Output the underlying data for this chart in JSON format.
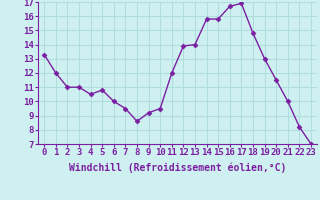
{
  "x": [
    0,
    1,
    2,
    3,
    4,
    5,
    6,
    7,
    8,
    9,
    10,
    11,
    12,
    13,
    14,
    15,
    16,
    17,
    18,
    19,
    20,
    21,
    22,
    23
  ],
  "y": [
    13.3,
    12.0,
    11.0,
    11.0,
    10.5,
    10.8,
    10.0,
    9.5,
    8.6,
    9.2,
    9.5,
    12.0,
    13.9,
    14.0,
    15.8,
    15.8,
    16.7,
    16.9,
    14.8,
    13.0,
    11.5,
    10.0,
    8.2,
    7.0
  ],
  "ylim": [
    7,
    17
  ],
  "yticks": [
    7,
    8,
    9,
    10,
    11,
    12,
    13,
    14,
    15,
    16,
    17
  ],
  "xtick_labels": [
    "0",
    "1",
    "2",
    "3",
    "4",
    "5",
    "6",
    "7",
    "8",
    "9",
    "10",
    "11",
    "12",
    "13",
    "14",
    "15",
    "16",
    "17",
    "18",
    "19",
    "20",
    "21",
    "22",
    "23"
  ],
  "xlabel": "Windchill (Refroidissement éolien,°C)",
  "line_color": "#7b1fa2",
  "marker": "D",
  "marker_size": 2.5,
  "bg_color": "#cff0f0",
  "grid_color": "#b0dede",
  "tick_color": "#7b1fa2",
  "label_color": "#7b1fa2",
  "axis_font_size": 6.5,
  "xlabel_font_size": 7.0,
  "line_width": 1.0
}
